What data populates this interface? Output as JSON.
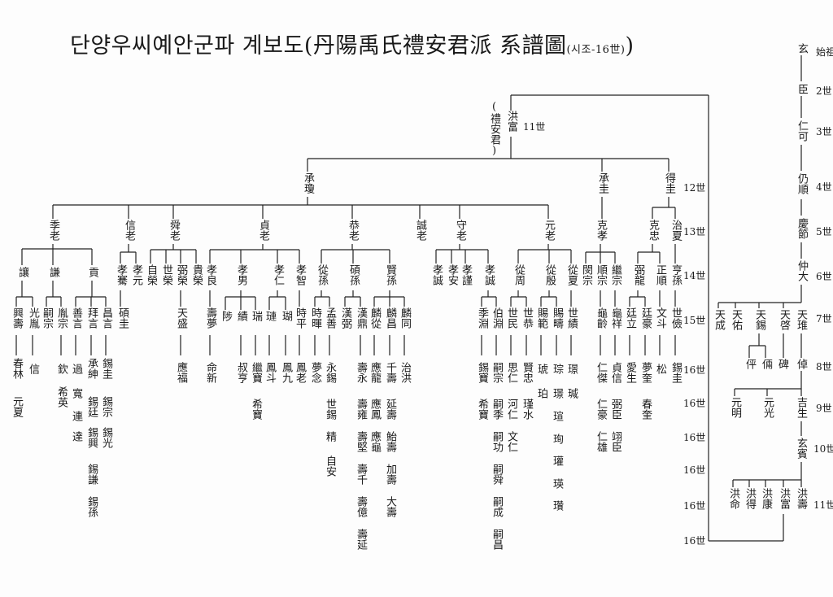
{
  "title": {
    "main": "단양우씨예안군파 계보도(丹陽禹氏禮安君派 系譜圖",
    "sub": "(시조-16世)",
    "close": ")"
  },
  "annotation": "(禮安君)",
  "nodes": [
    "玄",
    "臣",
    "仁可",
    "仍順",
    "慶節",
    "仲大",
    "天成",
    "天佑",
    "天錫",
    "天啓",
    "天琟",
    "伻",
    "倆",
    "碑",
    "倬",
    "元明",
    "元光",
    "吉生",
    "玄賓",
    "洪命",
    "洪得",
    "洪康",
    "洪富",
    "洪壽",
    "洪富",
    "承瓊",
    "承圭",
    "得圭",
    "季老",
    "信老",
    "舜老",
    "貞老",
    "恭老",
    "誠老",
    "守老",
    "元老",
    "克孝",
    "克忠",
    "治夏",
    "讓",
    "謙",
    "貢",
    "孝騫",
    "孝元",
    "自榮",
    "世榮",
    "弼榮",
    "貴榮",
    "孝良",
    "孝男",
    "孝仁",
    "孝智",
    "從孫",
    "碩孫",
    "賢孫",
    "孝誠",
    "孝安",
    "孝謹",
    "孝誠",
    "從周",
    "從殷",
    "從夏",
    "閔宗",
    "順宗",
    "繼宗",
    "弼龍",
    "正順",
    "亨孫",
    "興壽",
    "光胤",
    "嗣宗",
    "胤宗",
    "善言",
    "拜言",
    "昌言",
    "碩圭",
    "天盛",
    "壽夢",
    "陟",
    "績",
    "瑞",
    "璉",
    "瑚",
    "時平",
    "時暉",
    "孟善",
    "漢弼",
    "漢鼎",
    "麟從",
    "麟昌",
    "麟同",
    "季淵",
    "伯淵",
    "世民",
    "世恭",
    "賜範",
    "賜疇",
    "世績",
    "龜齡",
    "龜祥",
    "廷立",
    "廷豪",
    "文斗",
    "世儉",
    "春林",
    "元夏",
    "信",
    "欽",
    "希英",
    "過",
    "寬",
    "連",
    "達",
    "承紳",
    "錫廷",
    "錫興",
    "錫謙",
    "錫孫",
    "錫圭",
    "錫宗",
    "錫光",
    "應福",
    "命新",
    "叔亨",
    "繼寶",
    "希寶",
    "鳳斗",
    "鳳九",
    "鳳老",
    "夢念",
    "永錫",
    "世錫",
    "精",
    "自安",
    "壽永",
    "壽雍",
    "壽堅",
    "壽千",
    "壽億",
    "壽延",
    "應龍",
    "應鳳",
    "應龜",
    "千壽",
    "延壽",
    "鮐壽",
    "加壽",
    "大壽",
    "治洪",
    "錫寶",
    "希寶",
    "嗣宗",
    "嗣季",
    "嗣功",
    "嗣舜",
    "嗣成",
    "嗣昌",
    "思仁",
    "河仁",
    "文仁",
    "賢忠",
    "瑾水",
    "琥",
    "珀",
    "琮",
    "璟",
    "瑄",
    "珣",
    "瓘",
    "瑛",
    "瓚",
    "璟",
    "瑊",
    "仁傑",
    "仁豪",
    "仁雄",
    "貞信",
    "弼臣",
    "翊臣",
    "愛生",
    "夢奎",
    "春奎",
    "松",
    "錫圭"
  ],
  "generation_labels": [
    "始祖",
    "2世",
    "3世",
    "4世",
    "5世",
    "6世",
    "7世",
    "8世",
    "9世",
    "10世",
    "11世",
    "11世",
    "12世",
    "13世",
    "14世",
    "15世",
    "16世",
    "16世",
    "16世",
    "16世",
    "16世",
    "16世"
  ]
}
